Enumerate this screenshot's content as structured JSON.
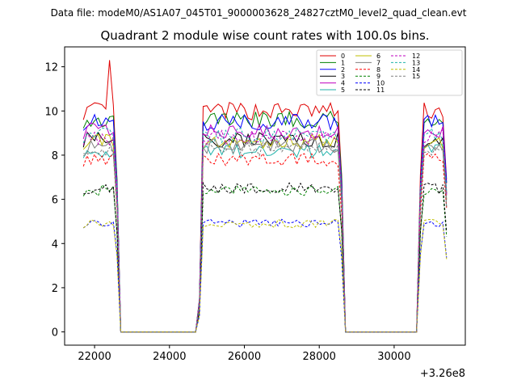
{
  "figure": {
    "suptitle": "Data file: modeM0/AS1A07_045T01_9000003628_24827cztM0_level2_quad_clean.evt",
    "title": "Quadrant 2 module wise count rates with 100.0s bins.",
    "offset_label": "+3.26e8"
  },
  "chart_data": {
    "type": "line",
    "title": "Quadrant 2 module wise count rates with 100.0s bins.",
    "xlabel": "",
    "ylabel": "",
    "x_offset": 326000000,
    "xlim": [
      21200,
      31900
    ],
    "ylim": [
      -0.6,
      12.9
    ],
    "xticks": [
      22000,
      24000,
      26000,
      28000,
      30000
    ],
    "xtick_labels": [
      "22000",
      "24000",
      "26000",
      "28000",
      "30000"
    ],
    "yticks": [
      0,
      2,
      4,
      6,
      8,
      10,
      12
    ],
    "ytick_labels": [
      "0",
      "2",
      "4",
      "6",
      "8",
      "10",
      "12"
    ],
    "grid": false,
    "legend_position": "top-right",
    "segments": [
      {
        "start": 21700,
        "end": 22600
      },
      {
        "start": 24800,
        "end": 28600
      },
      {
        "start": 30700,
        "end": 31400
      }
    ],
    "bin_width": 100,
    "series": [
      {
        "name": "0",
        "color": "#e00000",
        "dash": "solid",
        "level": 10.0,
        "first_seg_peak": 12.3
      },
      {
        "name": "1",
        "color": "#008000",
        "dash": "solid",
        "level": 9.6
      },
      {
        "name": "2",
        "color": "#0000ff",
        "dash": "solid",
        "level": 9.5
      },
      {
        "name": "3",
        "color": "#000000",
        "dash": "solid",
        "level": 8.7
      },
      {
        "name": "4",
        "color": "#bf00bf",
        "dash": "solid",
        "level": 9.1
      },
      {
        "name": "5",
        "color": "#20b2aa",
        "dash": "solid",
        "level": 8.2
      },
      {
        "name": "6",
        "color": "#bfbf00",
        "dash": "solid",
        "level": 8.6
      },
      {
        "name": "7",
        "color": "#808080",
        "dash": "solid",
        "level": 8.4
      },
      {
        "name": "8",
        "color": "#ff0000",
        "dash": "dashed",
        "level": 7.8
      },
      {
        "name": "9",
        "color": "#008000",
        "dash": "dashed",
        "level": 6.4
      },
      {
        "name": "10",
        "color": "#0000ff",
        "dash": "dashed",
        "level": 4.9
      },
      {
        "name": "11",
        "color": "#000000",
        "dash": "dashed",
        "level": 6.5
      },
      {
        "name": "12",
        "color": "#bf00bf",
        "dash": "dashed",
        "level": 8.8
      },
      {
        "name": "13",
        "color": "#20b2aa",
        "dash": "dashed",
        "level": 8.9
      },
      {
        "name": "14",
        "color": "#bfbf00",
        "dash": "dashed",
        "level": 4.9
      },
      {
        "name": "15",
        "color": "#808080",
        "dash": "dashed",
        "level": 8.3
      }
    ]
  }
}
